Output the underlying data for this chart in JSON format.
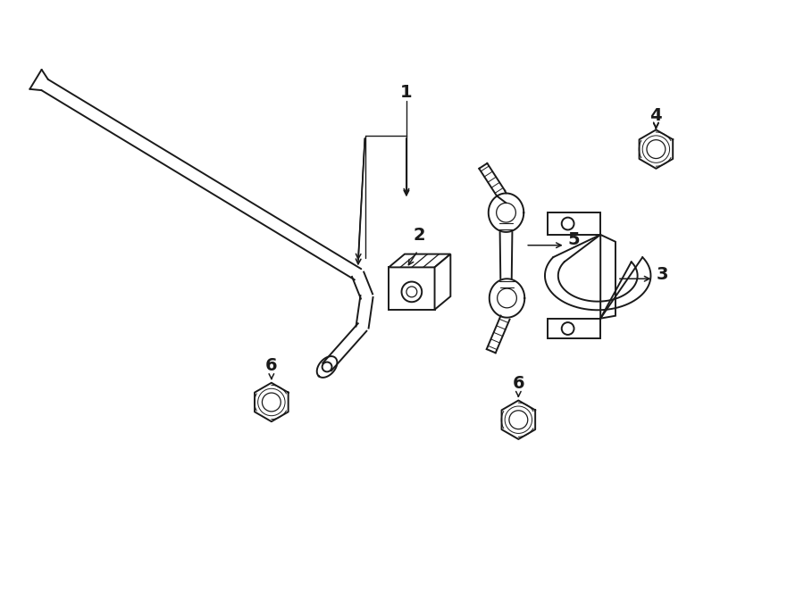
{
  "background_color": "#ffffff",
  "line_color": "#1a1a1a",
  "line_width": 1.4,
  "label_fontsize": 14,
  "label_fontweight": "bold",
  "figsize": [
    9.0,
    6.62
  ],
  "dpi": 100
}
